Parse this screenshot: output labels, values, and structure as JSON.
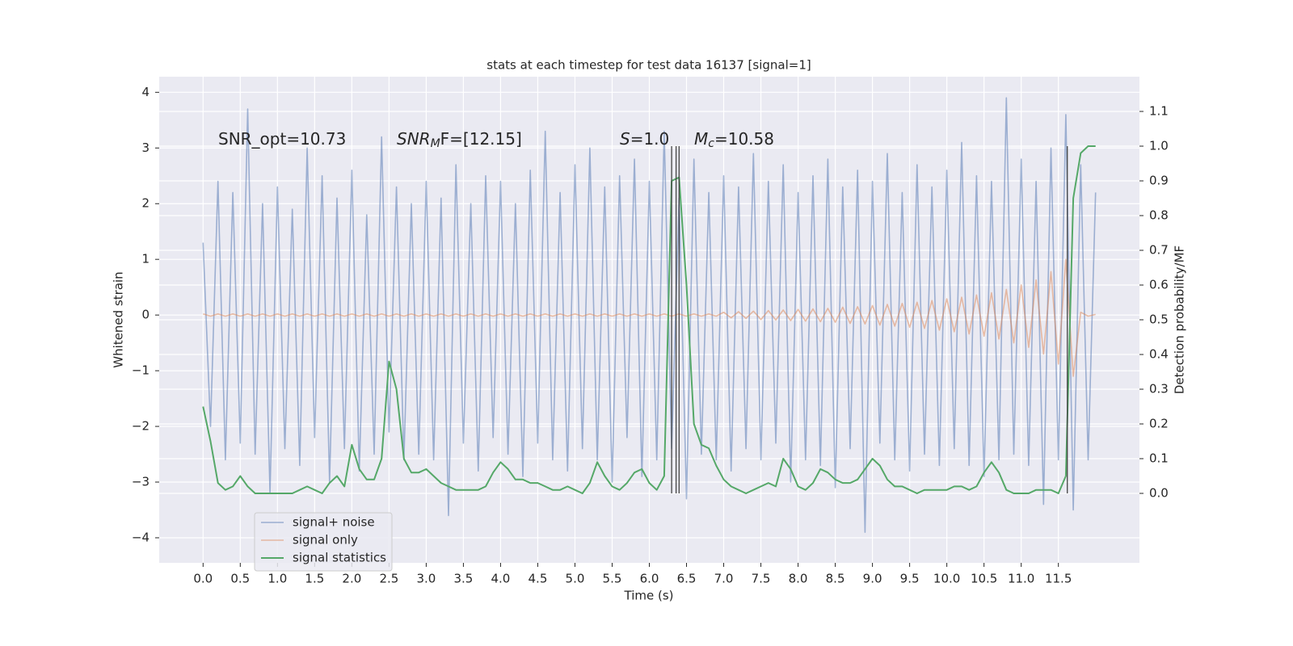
{
  "chart_data": {
    "type": "line",
    "title": "stats at each timestep for test data 16137 [signal=1]",
    "xlabel": "Time (s)",
    "ylabel": "Whitened strain",
    "y2label": "Detection probability/MF",
    "grid": true,
    "legend": "lower left",
    "xlim": [
      -0.59,
      12.59
    ],
    "ylim": [
      -4.45,
      4.28
    ],
    "y2lim": [
      -0.2,
      1.2
    ],
    "xticks": [
      {
        "value": 0,
        "label": "0.0"
      },
      {
        "value": 0.5,
        "label": "0.5"
      },
      {
        "value": 1,
        "label": "1.0"
      },
      {
        "value": 1.5,
        "label": "1.5"
      },
      {
        "value": 2,
        "label": "2.0"
      },
      {
        "value": 2.5,
        "label": "2.5"
      },
      {
        "value": 3,
        "label": "3.0"
      },
      {
        "value": 3.5,
        "label": "3.5"
      },
      {
        "value": 4,
        "label": "4.0"
      },
      {
        "value": 4.5,
        "label": "4.5"
      },
      {
        "value": 5,
        "label": "5.0"
      },
      {
        "value": 5.5,
        "label": "5.5"
      },
      {
        "value": 6,
        "label": "6.0"
      },
      {
        "value": 6.5,
        "label": "6.5"
      },
      {
        "value": 7,
        "label": "7.0"
      },
      {
        "value": 7.5,
        "label": "7.5"
      },
      {
        "value": 8,
        "label": "8.0"
      },
      {
        "value": 8.5,
        "label": "8.5"
      },
      {
        "value": 9,
        "label": "9.0"
      },
      {
        "value": 9.5,
        "label": "9.5"
      },
      {
        "value": 10,
        "label": "10.0"
      },
      {
        "value": 10.5,
        "label": "10.5"
      },
      {
        "value": 11,
        "label": "11.0"
      },
      {
        "value": 11.5,
        "label": "11.5"
      }
    ],
    "yticks": [
      {
        "value": -4,
        "label": "−4"
      },
      {
        "value": -3,
        "label": "−3"
      },
      {
        "value": -2,
        "label": "−2"
      },
      {
        "value": -1,
        "label": "−1"
      },
      0,
      1,
      2,
      3,
      4
    ],
    "y2ticks": [
      {
        "value": 0,
        "label": "0.0"
      },
      {
        "value": 0.1,
        "label": "0.1"
      },
      {
        "value": 0.2,
        "label": "0.2"
      },
      {
        "value": 0.3,
        "label": "0.3"
      },
      {
        "value": 0.4,
        "label": "0.4"
      },
      {
        "value": 0.5,
        "label": "0.5"
      },
      {
        "value": 0.6,
        "label": "0.6"
      },
      {
        "value": 0.7,
        "label": "0.7"
      },
      {
        "value": 0.8,
        "label": "0.8"
      },
      {
        "value": 0.9,
        "label": "0.9"
      },
      {
        "value": 1,
        "label": "1.0"
      },
      {
        "value": 1.1,
        "label": "1.1"
      }
    ],
    "annotations": [
      {
        "main": "SNR_opt=10.73"
      },
      {
        "main": "SNR",
        "sub": "M",
        "rest": "F=[12.15]"
      },
      {
        "main": "S",
        "rest": "=1.0"
      },
      {
        "main": "M",
        "sub": "c",
        "rest": "=10.58"
      }
    ],
    "vlines": {
      "x": [
        6.3,
        6.36,
        6.4,
        11.62
      ],
      "y2range": [
        0,
        1.0
      ],
      "color": "#444444"
    },
    "x": [
      0,
      0.1,
      0.2,
      0.3,
      0.4,
      0.5,
      0.6,
      0.7,
      0.8,
      0.9,
      1,
      1.1,
      1.2,
      1.3,
      1.4,
      1.5,
      1.6,
      1.7,
      1.8,
      1.9,
      2,
      2.1,
      2.2,
      2.3,
      2.4,
      2.5,
      2.6,
      2.7,
      2.8,
      2.9,
      3,
      3.1,
      3.2,
      3.3,
      3.4,
      3.5,
      3.6,
      3.7,
      3.8,
      3.9,
      4,
      4.1,
      4.2,
      4.3,
      4.4,
      4.5,
      4.6,
      4.7,
      4.8,
      4.9,
      5,
      5.1,
      5.2,
      5.3,
      5.4,
      5.5,
      5.6,
      5.7,
      5.8,
      5.9,
      6,
      6.1,
      6.2,
      6.3,
      6.4,
      6.5,
      6.6,
      6.7,
      6.8,
      6.9,
      7,
      7.1,
      7.2,
      7.3,
      7.4,
      7.5,
      7.6,
      7.7,
      7.8,
      7.9,
      8,
      8.1,
      8.2,
      8.3,
      8.4,
      8.5,
      8.6,
      8.7,
      8.8,
      8.9,
      9,
      9.1,
      9.2,
      9.3,
      9.4,
      9.5,
      9.6,
      9.7,
      9.8,
      9.9,
      10,
      10.1,
      10.2,
      10.3,
      10.4,
      10.5,
      10.6,
      10.7,
      10.8,
      10.9,
      11,
      11.1,
      11.2,
      11.3,
      11.4,
      11.5,
      11.6,
      11.7,
      11.8,
      11.9,
      12
    ],
    "series": [
      {
        "name": "signal+ noise",
        "color": "#4c72b0",
        "values": [
          1.3,
          -2.0,
          2.4,
          -2.6,
          2.2,
          -2.3,
          3.7,
          -2.5,
          2.0,
          -3.2,
          2.3,
          -2.4,
          1.9,
          -2.7,
          3.0,
          -2.2,
          2.5,
          -3.0,
          2.1,
          -2.4,
          2.6,
          -2.8,
          1.8,
          -2.5,
          3.2,
          -2.1,
          2.3,
          -2.6,
          2.0,
          -2.5,
          2.4,
          -2.6,
          2.1,
          -3.6,
          2.7,
          -2.3,
          2.0,
          -2.8,
          2.5,
          -2.2,
          2.4,
          -2.5,
          2.0,
          -2.9,
          2.6,
          -2.3,
          3.3,
          -2.6,
          2.2,
          -2.8,
          2.7,
          -2.4,
          3.0,
          -2.6,
          2.3,
          -3.0,
          2.5,
          -2.2,
          2.8,
          -2.9,
          2.4,
          -2.6,
          3.3,
          -2.4,
          2.1,
          -3.3,
          2.8,
          -2.5,
          2.2,
          -2.6,
          2.5,
          -2.8,
          2.3,
          -2.4,
          2.9,
          -2.6,
          2.4,
          -2.3,
          2.7,
          -3.0,
          2.2,
          -2.6,
          2.5,
          -2.7,
          2.8,
          -3.1,
          2.3,
          -2.4,
          2.6,
          -3.9,
          2.4,
          -2.3,
          2.9,
          -2.6,
          2.2,
          -2.8,
          2.7,
          -2.5,
          2.3,
          -2.7,
          2.6,
          -2.4,
          3.1,
          -2.7,
          2.5,
          -2.9,
          2.4,
          -2.6,
          3.9,
          -2.5,
          2.8,
          -2.7,
          2.4,
          -3.4,
          3.0,
          -2.6,
          3.6,
          -3.5,
          2.7,
          -2.6,
          2.2
        ]
      },
      {
        "name": "signal only",
        "color": "#dd8452",
        "values": [
          0.02,
          -0.02,
          0.02,
          -0.02,
          0.02,
          -0.02,
          0.02,
          -0.02,
          0.02,
          -0.02,
          0.02,
          -0.02,
          0.02,
          -0.02,
          0.02,
          -0.02,
          0.02,
          -0.02,
          0.02,
          -0.02,
          0.02,
          -0.02,
          0.02,
          -0.02,
          0.02,
          -0.02,
          0.02,
          -0.02,
          0.02,
          -0.02,
          0.02,
          -0.02,
          0.02,
          -0.02,
          0.02,
          -0.02,
          0.02,
          -0.02,
          0.02,
          -0.02,
          0.02,
          -0.02,
          0.02,
          -0.02,
          0.02,
          -0.02,
          0.02,
          -0.02,
          0.02,
          -0.02,
          0.02,
          -0.02,
          0.02,
          -0.02,
          0.02,
          -0.02,
          0.02,
          -0.02,
          0.02,
          -0.02,
          0.02,
          -0.02,
          0.02,
          -0.02,
          0.02,
          -0.02,
          0.02,
          -0.02,
          0.02,
          -0.02,
          0.05,
          -0.05,
          0.06,
          -0.06,
          0.07,
          -0.08,
          0.08,
          -0.09,
          0.09,
          -0.1,
          0.1,
          -0.11,
          0.11,
          -0.12,
          0.12,
          -0.13,
          0.14,
          -0.15,
          0.15,
          -0.16,
          0.17,
          -0.18,
          0.19,
          -0.2,
          0.21,
          -0.22,
          0.23,
          -0.24,
          0.26,
          -0.27,
          0.29,
          -0.3,
          0.32,
          -0.34,
          0.36,
          -0.38,
          0.4,
          -0.43,
          0.46,
          -0.5,
          0.54,
          -0.58,
          0.63,
          -0.7,
          0.78,
          -0.88,
          1.0,
          -1.1,
          0.05,
          -0.02,
          0.01
        ]
      },
      {
        "name": "signal statistics",
        "color": "#55a868",
        "axis": "y2",
        "values": [
          0.25,
          0.15,
          0.03,
          0.01,
          0.02,
          0.05,
          0.02,
          0.0,
          0.0,
          0.0,
          0.0,
          0.0,
          0.0,
          0.01,
          0.02,
          0.01,
          0.0,
          0.03,
          0.05,
          0.02,
          0.14,
          0.07,
          0.04,
          0.04,
          0.1,
          0.38,
          0.3,
          0.1,
          0.06,
          0.06,
          0.07,
          0.05,
          0.03,
          0.02,
          0.01,
          0.01,
          0.01,
          0.01,
          0.02,
          0.06,
          0.09,
          0.07,
          0.04,
          0.04,
          0.03,
          0.03,
          0.02,
          0.01,
          0.01,
          0.02,
          0.01,
          0.0,
          0.03,
          0.09,
          0.05,
          0.02,
          0.01,
          0.03,
          0.06,
          0.07,
          0.03,
          0.01,
          0.05,
          0.9,
          0.91,
          0.6,
          0.2,
          0.14,
          0.13,
          0.08,
          0.04,
          0.02,
          0.01,
          0.0,
          0.01,
          0.02,
          0.03,
          0.02,
          0.1,
          0.07,
          0.02,
          0.01,
          0.03,
          0.07,
          0.06,
          0.04,
          0.03,
          0.03,
          0.04,
          0.07,
          0.1,
          0.08,
          0.04,
          0.02,
          0.02,
          0.01,
          0.0,
          0.01,
          0.01,
          0.01,
          0.01,
          0.02,
          0.02,
          0.01,
          0.02,
          0.06,
          0.09,
          0.06,
          0.01,
          0.0,
          0.0,
          0.0,
          0.01,
          0.01,
          0.01,
          0.0,
          0.05,
          0.85,
          0.98,
          1.0,
          1.0
        ]
      }
    ]
  }
}
